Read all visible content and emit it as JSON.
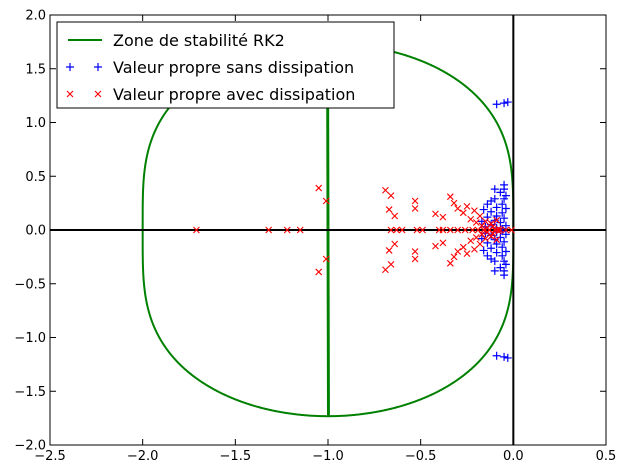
{
  "chart_data": {
    "type": "scatter",
    "xlim": [
      -2.5,
      0.5
    ],
    "ylim": [
      -2.0,
      2.0
    ],
    "xticks": [
      "−2.5",
      "−2.0",
      "−1.5",
      "−1.0",
      "−0.5",
      "0.0",
      "0.5"
    ],
    "yticks": [
      "−2.0",
      "−1.5",
      "−1.0",
      "−0.5",
      "0.0",
      "0.5",
      "1.0",
      "1.5",
      "2.0"
    ],
    "xtick_values": [
      -2.5,
      -2.0,
      -1.5,
      -1.0,
      -0.5,
      0.0,
      0.5
    ],
    "ytick_values": [
      -2.0,
      -1.5,
      -1.0,
      -0.5,
      0.0,
      0.5,
      1.0,
      1.5,
      2.0
    ],
    "grid": false,
    "legend_position": "top-left",
    "colors": {
      "stability": "#008000",
      "no_dissipation": "#0000ff",
      "with_dissipation": "#ff0000",
      "axes": "#000000"
    },
    "series": [
      {
        "name": "Zone de stabilité RK2",
        "kind": "stability-boundary",
        "formula": "|1 + z + z^2/2| = 1",
        "extent": {
          "x_min": -2.0,
          "x_max": 0.0,
          "y_max": 1.732
        }
      },
      {
        "name": "Valeur propre sans dissipation",
        "marker": "+",
        "points": [
          [
            -0.09,
            1.17
          ],
          [
            -0.05,
            1.18
          ],
          [
            -0.03,
            1.19
          ],
          [
            -0.09,
            -1.17
          ],
          [
            -0.05,
            -1.18
          ],
          [
            -0.03,
            -1.19
          ],
          [
            -0.05,
            0.42
          ],
          [
            -0.05,
            0.38
          ],
          [
            -0.1,
            0.38
          ],
          [
            -0.07,
            0.35
          ],
          [
            -0.04,
            0.32
          ],
          [
            -0.05,
            0.29
          ],
          [
            -0.1,
            0.29
          ],
          [
            -0.12,
            0.27
          ],
          [
            -0.06,
            0.24
          ],
          [
            -0.14,
            0.24
          ],
          [
            -0.09,
            0.21
          ],
          [
            -0.04,
            0.2
          ],
          [
            -0.16,
            0.19
          ],
          [
            -0.12,
            0.17
          ],
          [
            -0.06,
            0.16
          ],
          [
            -0.09,
            0.13
          ],
          [
            -0.14,
            0.12
          ],
          [
            -0.05,
            0.11
          ],
          [
            -0.1,
            0.09
          ],
          [
            -0.17,
            0.08
          ],
          [
            -0.07,
            0.07
          ],
          [
            -0.12,
            0.05
          ],
          [
            -0.04,
            0.04
          ],
          [
            -0.15,
            0.03
          ],
          [
            -0.09,
            0.02
          ],
          [
            -0.06,
            0.01
          ],
          [
            -0.05,
            -0.42
          ],
          [
            -0.05,
            -0.38
          ],
          [
            -0.1,
            -0.38
          ],
          [
            -0.07,
            -0.35
          ],
          [
            -0.04,
            -0.32
          ],
          [
            -0.05,
            -0.29
          ],
          [
            -0.1,
            -0.29
          ],
          [
            -0.12,
            -0.27
          ],
          [
            -0.06,
            -0.24
          ],
          [
            -0.14,
            -0.24
          ],
          [
            -0.09,
            -0.21
          ],
          [
            -0.04,
            -0.2
          ],
          [
            -0.16,
            -0.19
          ],
          [
            -0.12,
            -0.17
          ],
          [
            -0.06,
            -0.16
          ],
          [
            -0.09,
            -0.13
          ],
          [
            -0.14,
            -0.12
          ],
          [
            -0.05,
            -0.11
          ],
          [
            -0.1,
            -0.09
          ],
          [
            -0.17,
            -0.08
          ],
          [
            -0.07,
            -0.07
          ],
          [
            -0.12,
            -0.05
          ],
          [
            -0.04,
            -0.04
          ],
          [
            -0.15,
            -0.03
          ],
          [
            -0.09,
            -0.02
          ],
          [
            -0.06,
            -0.01
          ]
        ]
      },
      {
        "name": "Valeur propre avec dissipation",
        "marker": "x",
        "points": [
          [
            -1.71,
            0.0
          ],
          [
            -1.32,
            0.0
          ],
          [
            -1.22,
            0.0
          ],
          [
            -1.15,
            0.0
          ],
          [
            -0.66,
            0.0
          ],
          [
            -0.63,
            0.0
          ],
          [
            -0.6,
            0.0
          ],
          [
            -0.52,
            0.0
          ],
          [
            -0.49,
            0.0
          ],
          [
            -0.4,
            0.0
          ],
          [
            -0.38,
            0.0
          ],
          [
            -0.34,
            0.0
          ],
          [
            -0.3,
            0.0
          ],
          [
            -0.26,
            0.0
          ],
          [
            -0.22,
            0.0
          ],
          [
            -0.19,
            0.0
          ],
          [
            -0.16,
            0.0
          ],
          [
            -0.13,
            0.0
          ],
          [
            -0.1,
            0.0
          ],
          [
            -0.07,
            0.0
          ],
          [
            -0.04,
            0.0
          ],
          [
            -0.01,
            0.0
          ],
          [
            -1.05,
            0.39
          ],
          [
            -1.01,
            0.27
          ],
          [
            -0.69,
            0.37
          ],
          [
            -0.66,
            0.32
          ],
          [
            -0.67,
            0.19
          ],
          [
            -0.64,
            0.13
          ],
          [
            -0.53,
            0.27
          ],
          [
            -0.53,
            0.2
          ],
          [
            -0.42,
            0.15
          ],
          [
            -0.38,
            0.12
          ],
          [
            -0.34,
            0.31
          ],
          [
            -0.32,
            0.25
          ],
          [
            -0.3,
            0.2
          ],
          [
            -0.27,
            0.16
          ],
          [
            -0.25,
            0.22
          ],
          [
            -0.23,
            0.1
          ],
          [
            -0.21,
            0.18
          ],
          [
            -0.2,
            0.07
          ],
          [
            -0.18,
            0.13
          ],
          [
            -0.17,
            0.04
          ],
          [
            -0.15,
            0.08
          ],
          [
            -0.14,
            0.02
          ],
          [
            -0.12,
            0.06
          ],
          [
            -0.11,
            0.03
          ],
          [
            -0.09,
            0.09
          ],
          [
            -0.08,
            0.01
          ],
          [
            -1.05,
            -0.39
          ],
          [
            -1.01,
            -0.27
          ],
          [
            -0.69,
            -0.37
          ],
          [
            -0.66,
            -0.32
          ],
          [
            -0.67,
            -0.19
          ],
          [
            -0.64,
            -0.13
          ],
          [
            -0.53,
            -0.27
          ],
          [
            -0.53,
            -0.2
          ],
          [
            -0.42,
            -0.15
          ],
          [
            -0.38,
            -0.12
          ],
          [
            -0.34,
            -0.31
          ],
          [
            -0.32,
            -0.25
          ],
          [
            -0.3,
            -0.2
          ],
          [
            -0.27,
            -0.16
          ],
          [
            -0.25,
            -0.22
          ],
          [
            -0.23,
            -0.1
          ],
          [
            -0.21,
            -0.18
          ],
          [
            -0.2,
            -0.07
          ],
          [
            -0.18,
            -0.13
          ],
          [
            -0.17,
            -0.04
          ],
          [
            -0.15,
            -0.08
          ],
          [
            -0.14,
            -0.02
          ],
          [
            -0.12,
            -0.06
          ],
          [
            -0.11,
            -0.03
          ],
          [
            -0.09,
            -0.09
          ],
          [
            -0.08,
            -0.01
          ]
        ]
      }
    ]
  }
}
